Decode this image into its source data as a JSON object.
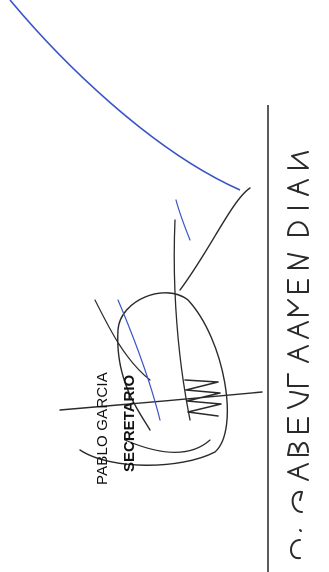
{
  "document": {
    "printed_name": "PABLO GARCIA",
    "printed_title": "SECRETARIO",
    "handwritten_name": "C. GABRIEL ALVAREZ DIAZ"
  },
  "colors": {
    "ink_dark": "#2a2a2a",
    "ink_blue": "#3a54c4",
    "paper": "#ffffff"
  }
}
